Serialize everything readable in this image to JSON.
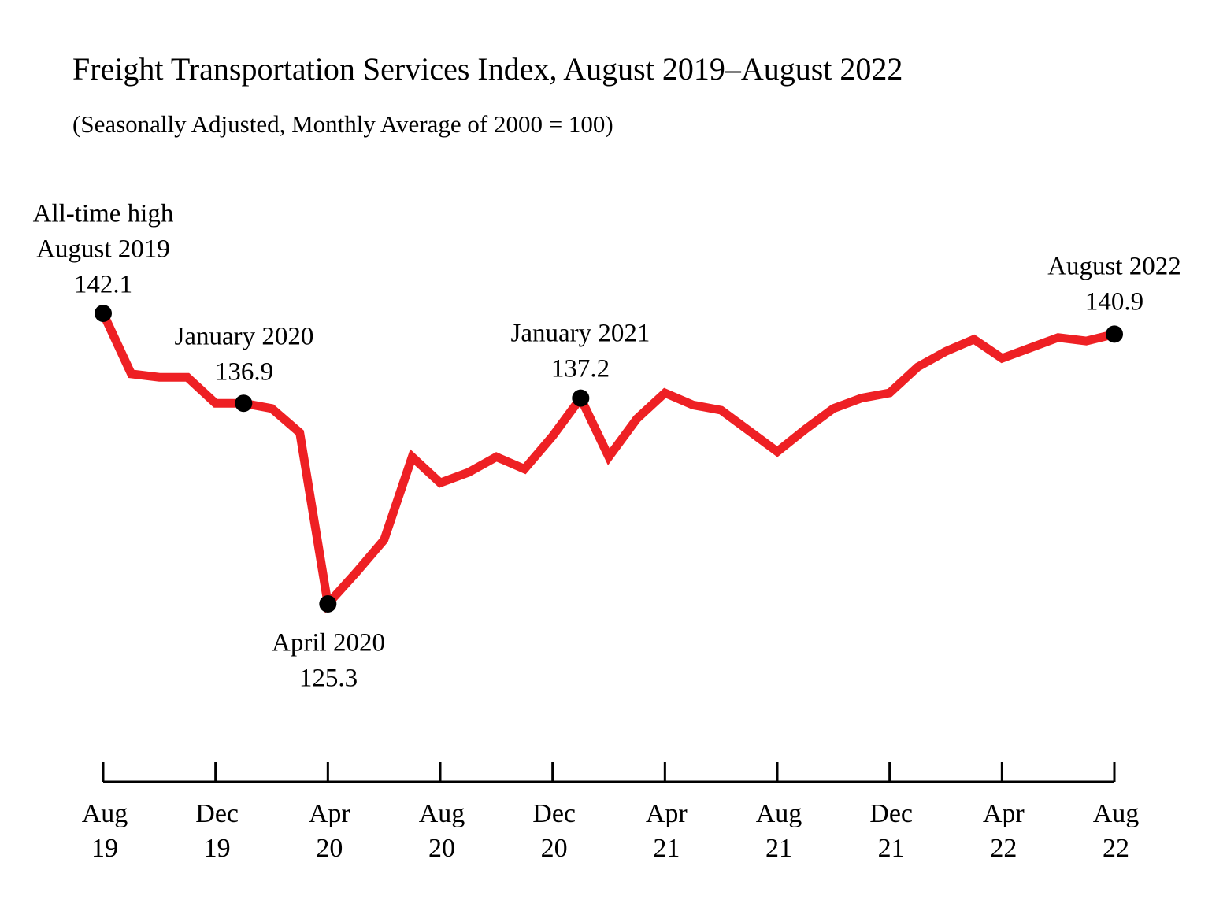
{
  "chart_data": {
    "type": "line",
    "title": "Freight Transportation Services Index, August 2019–August 2022",
    "subtitle": "(Seasonally Adjusted, Monthly Average of 2000 = 100)",
    "categories": [
      "Aug 19",
      null,
      null,
      null,
      "Dec 19",
      null,
      null,
      null,
      "Apr 20",
      null,
      null,
      null,
      "Aug 20",
      null,
      null,
      null,
      "Dec 20",
      null,
      null,
      null,
      "Apr 21",
      null,
      null,
      null,
      "Aug 21",
      null,
      null,
      null,
      "Dec 21",
      null,
      null,
      null,
      "Apr 22",
      null,
      null,
      null,
      "Aug 22"
    ],
    "values": [
      142.1,
      138.6,
      138.4,
      138.4,
      136.9,
      136.9,
      136.6,
      135.2,
      125.3,
      127.1,
      129.0,
      133.8,
      132.3,
      132.9,
      133.8,
      133.1,
      135.0,
      137.2,
      133.8,
      136.0,
      137.5,
      136.8,
      136.5,
      135.3,
      134.1,
      135.4,
      136.6,
      137.2,
      137.5,
      139.0,
      139.9,
      140.6,
      139.5,
      140.1,
      140.7,
      140.5,
      140.9
    ],
    "color": "#ee2024",
    "ylim": [
      125.3,
      142.1
    ],
    "annotations": [
      "All-time high",
      "August 2019",
      "January 2020",
      "April 2020",
      "January 2021",
      "August 2022"
    ]
  }
}
